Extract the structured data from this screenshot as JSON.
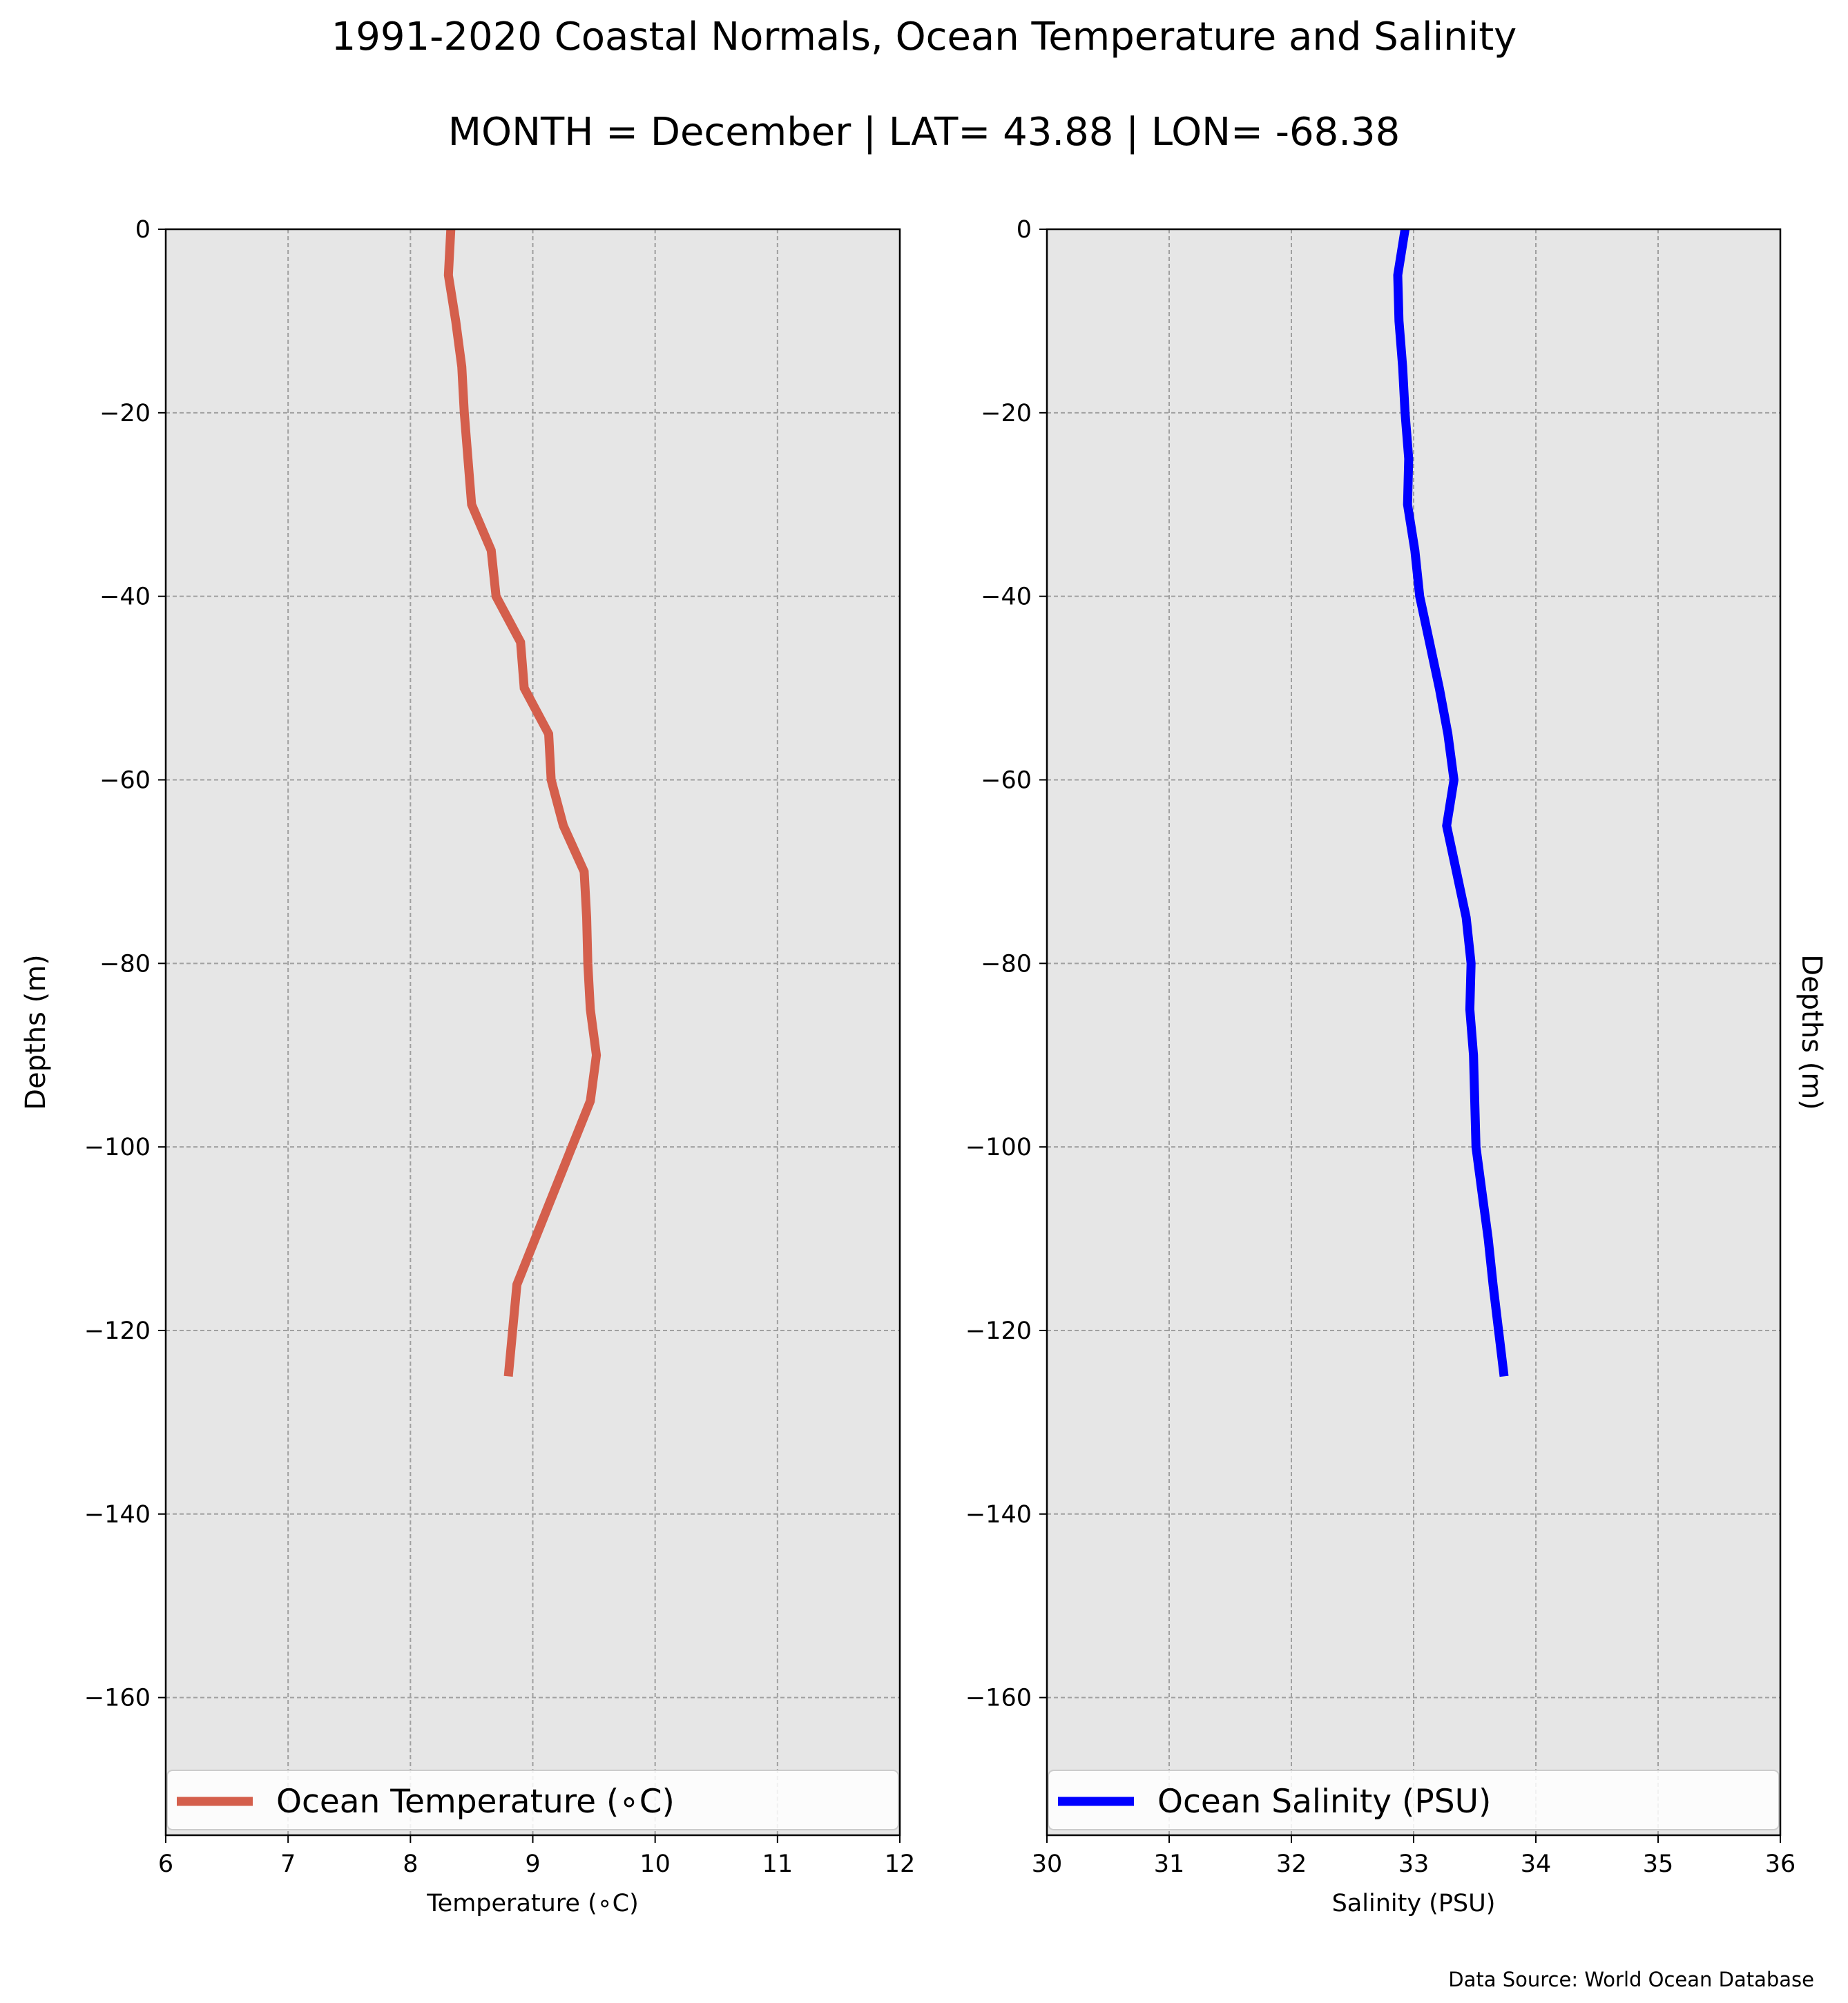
{
  "suptitle_line1": "1991-2020 Coastal Normals, Ocean Temperature and Salinity",
  "suptitle_line2": "MONTH = December | LAT= 43.88 | LON= -68.38",
  "source_note": "Data Source: World Ocean Database",
  "colors": {
    "temperature": "#d45f4c",
    "salinity": "#0000ff",
    "panel_bg": "#e6e6e6",
    "grid": "#a0a0a0"
  },
  "chart_data": [
    {
      "type": "line",
      "xlabel": "Temperature (∘C)",
      "ylabel": "Depths (m)",
      "xlim": [
        6,
        12
      ],
      "ylim": [
        -175,
        0
      ],
      "xticks": [
        6,
        7,
        8,
        9,
        10,
        11,
        12
      ],
      "xtick_labels": [
        "6",
        "7",
        "8",
        "9",
        "10",
        "11",
        "12"
      ],
      "yticks": [
        0,
        -20,
        -40,
        -60,
        -80,
        -100,
        -120,
        -140,
        -160
      ],
      "ytick_labels": [
        "0",
        "−20",
        "−40",
        "−60",
        "−80",
        "−100",
        "−120",
        "−140",
        "−160"
      ],
      "grid": true,
      "legend_position": "bottom",
      "series": [
        {
          "name": "Ocean Temperature (∘C)",
          "color": "#d45f4c",
          "x": [
            8.33,
            8.31,
            8.37,
            8.42,
            8.44,
            8.47,
            8.5,
            8.66,
            8.7,
            8.9,
            8.93,
            9.13,
            9.15,
            9.25,
            9.42,
            9.44,
            9.45,
            9.47,
            9.52,
            9.47,
            9.32,
            9.17,
            9.02,
            8.87,
            8.8
          ],
          "y": [
            0,
            -5,
            -10,
            -15,
            -20,
            -25,
            -30,
            -35,
            -40,
            -45,
            -50,
            -55,
            -60,
            -65,
            -70,
            -75,
            -80,
            -85,
            -90,
            -95,
            -100,
            -105,
            -110,
            -115,
            -125
          ]
        }
      ]
    },
    {
      "type": "line",
      "xlabel": "Salinity (PSU)",
      "ylabel": "Depths (m)",
      "xlim": [
        30,
        36
      ],
      "ylim": [
        -175,
        0
      ],
      "xticks": [
        30,
        31,
        32,
        33,
        34,
        35,
        36
      ],
      "xtick_labels": [
        "30",
        "31",
        "32",
        "33",
        "34",
        "35",
        "36"
      ],
      "yticks": [
        0,
        -20,
        -40,
        -60,
        -80,
        -100,
        -120,
        -140,
        -160
      ],
      "ytick_labels": [
        "0",
        "−20",
        "−40",
        "−60",
        "−80",
        "−100",
        "−120",
        "−140",
        "−160"
      ],
      "grid": true,
      "legend_position": "bottom",
      "series": [
        {
          "name": "Ocean Salinity (PSU)",
          "color": "#0000ff",
          "x": [
            32.93,
            32.87,
            32.88,
            32.91,
            32.93,
            32.96,
            32.95,
            33.01,
            33.05,
            33.13,
            33.21,
            33.28,
            33.33,
            33.27,
            33.35,
            33.43,
            33.47,
            33.46,
            33.49,
            33.5,
            33.51,
            33.56,
            33.61,
            33.65,
            33.74
          ],
          "y": [
            0,
            -5,
            -10,
            -15,
            -20,
            -25,
            -30,
            -35,
            -40,
            -45,
            -50,
            -55,
            -60,
            -65,
            -70,
            -75,
            -80,
            -85,
            -90,
            -95,
            -100,
            -105,
            -110,
            -115,
            -125
          ]
        }
      ]
    }
  ]
}
